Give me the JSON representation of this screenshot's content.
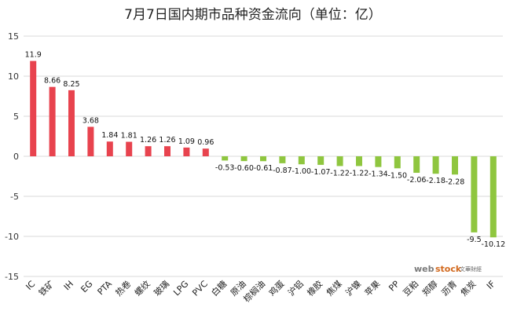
{
  "chart_data": {
    "type": "bar",
    "title": "7月7日国内期市品种资金流向（单位：亿）",
    "categories": [
      "IC",
      "铁矿",
      "IH",
      "EG",
      "PTA",
      "热卷",
      "螺纹",
      "玻璃",
      "LPG",
      "PVC",
      "白糖",
      "原油",
      "棕榈油",
      "鸡蛋",
      "沪铝",
      "橡胶",
      "焦煤",
      "沪镍",
      "苹果",
      "PP",
      "豆粕",
      "郑醇",
      "沥青",
      "焦炭",
      "IF"
    ],
    "values": [
      11.9,
      8.66,
      8.25,
      3.68,
      1.84,
      1.81,
      1.26,
      1.26,
      1.09,
      0.96,
      -0.53,
      -0.6,
      -0.61,
      -0.87,
      -1.0,
      -1.07,
      -1.22,
      -1.22,
      -1.34,
      -1.5,
      -2.06,
      -2.18,
      -2.28,
      -9.5,
      -10.12
    ],
    "data_labels": [
      "11.9",
      "8.66",
      "8.25",
      "3.68",
      "1.84",
      "1.81",
      "1.26",
      "1.26",
      "1.09",
      "0.96",
      "-0.53",
      "-0.60",
      "-0.61",
      "-0.87",
      "-1.00",
      "-1.07",
      "-1.22",
      "-1.22",
      "-1.34",
      "-1.50",
      "-2.06",
      "-2.18",
      "-2.28",
      "-9.5",
      "-10.12"
    ],
    "ylim": [
      -15,
      15
    ],
    "yticks": [
      -15,
      -10,
      -5,
      0,
      5,
      10,
      15
    ],
    "grid": true,
    "legend": "none",
    "colors": {
      "positive": "#e8434e",
      "negative": "#8fc63f",
      "grid": "#d9d9d9"
    }
  },
  "watermark": {
    "text_a": "web",
    "text_b": "stock",
    "text_c": "文華財經"
  }
}
